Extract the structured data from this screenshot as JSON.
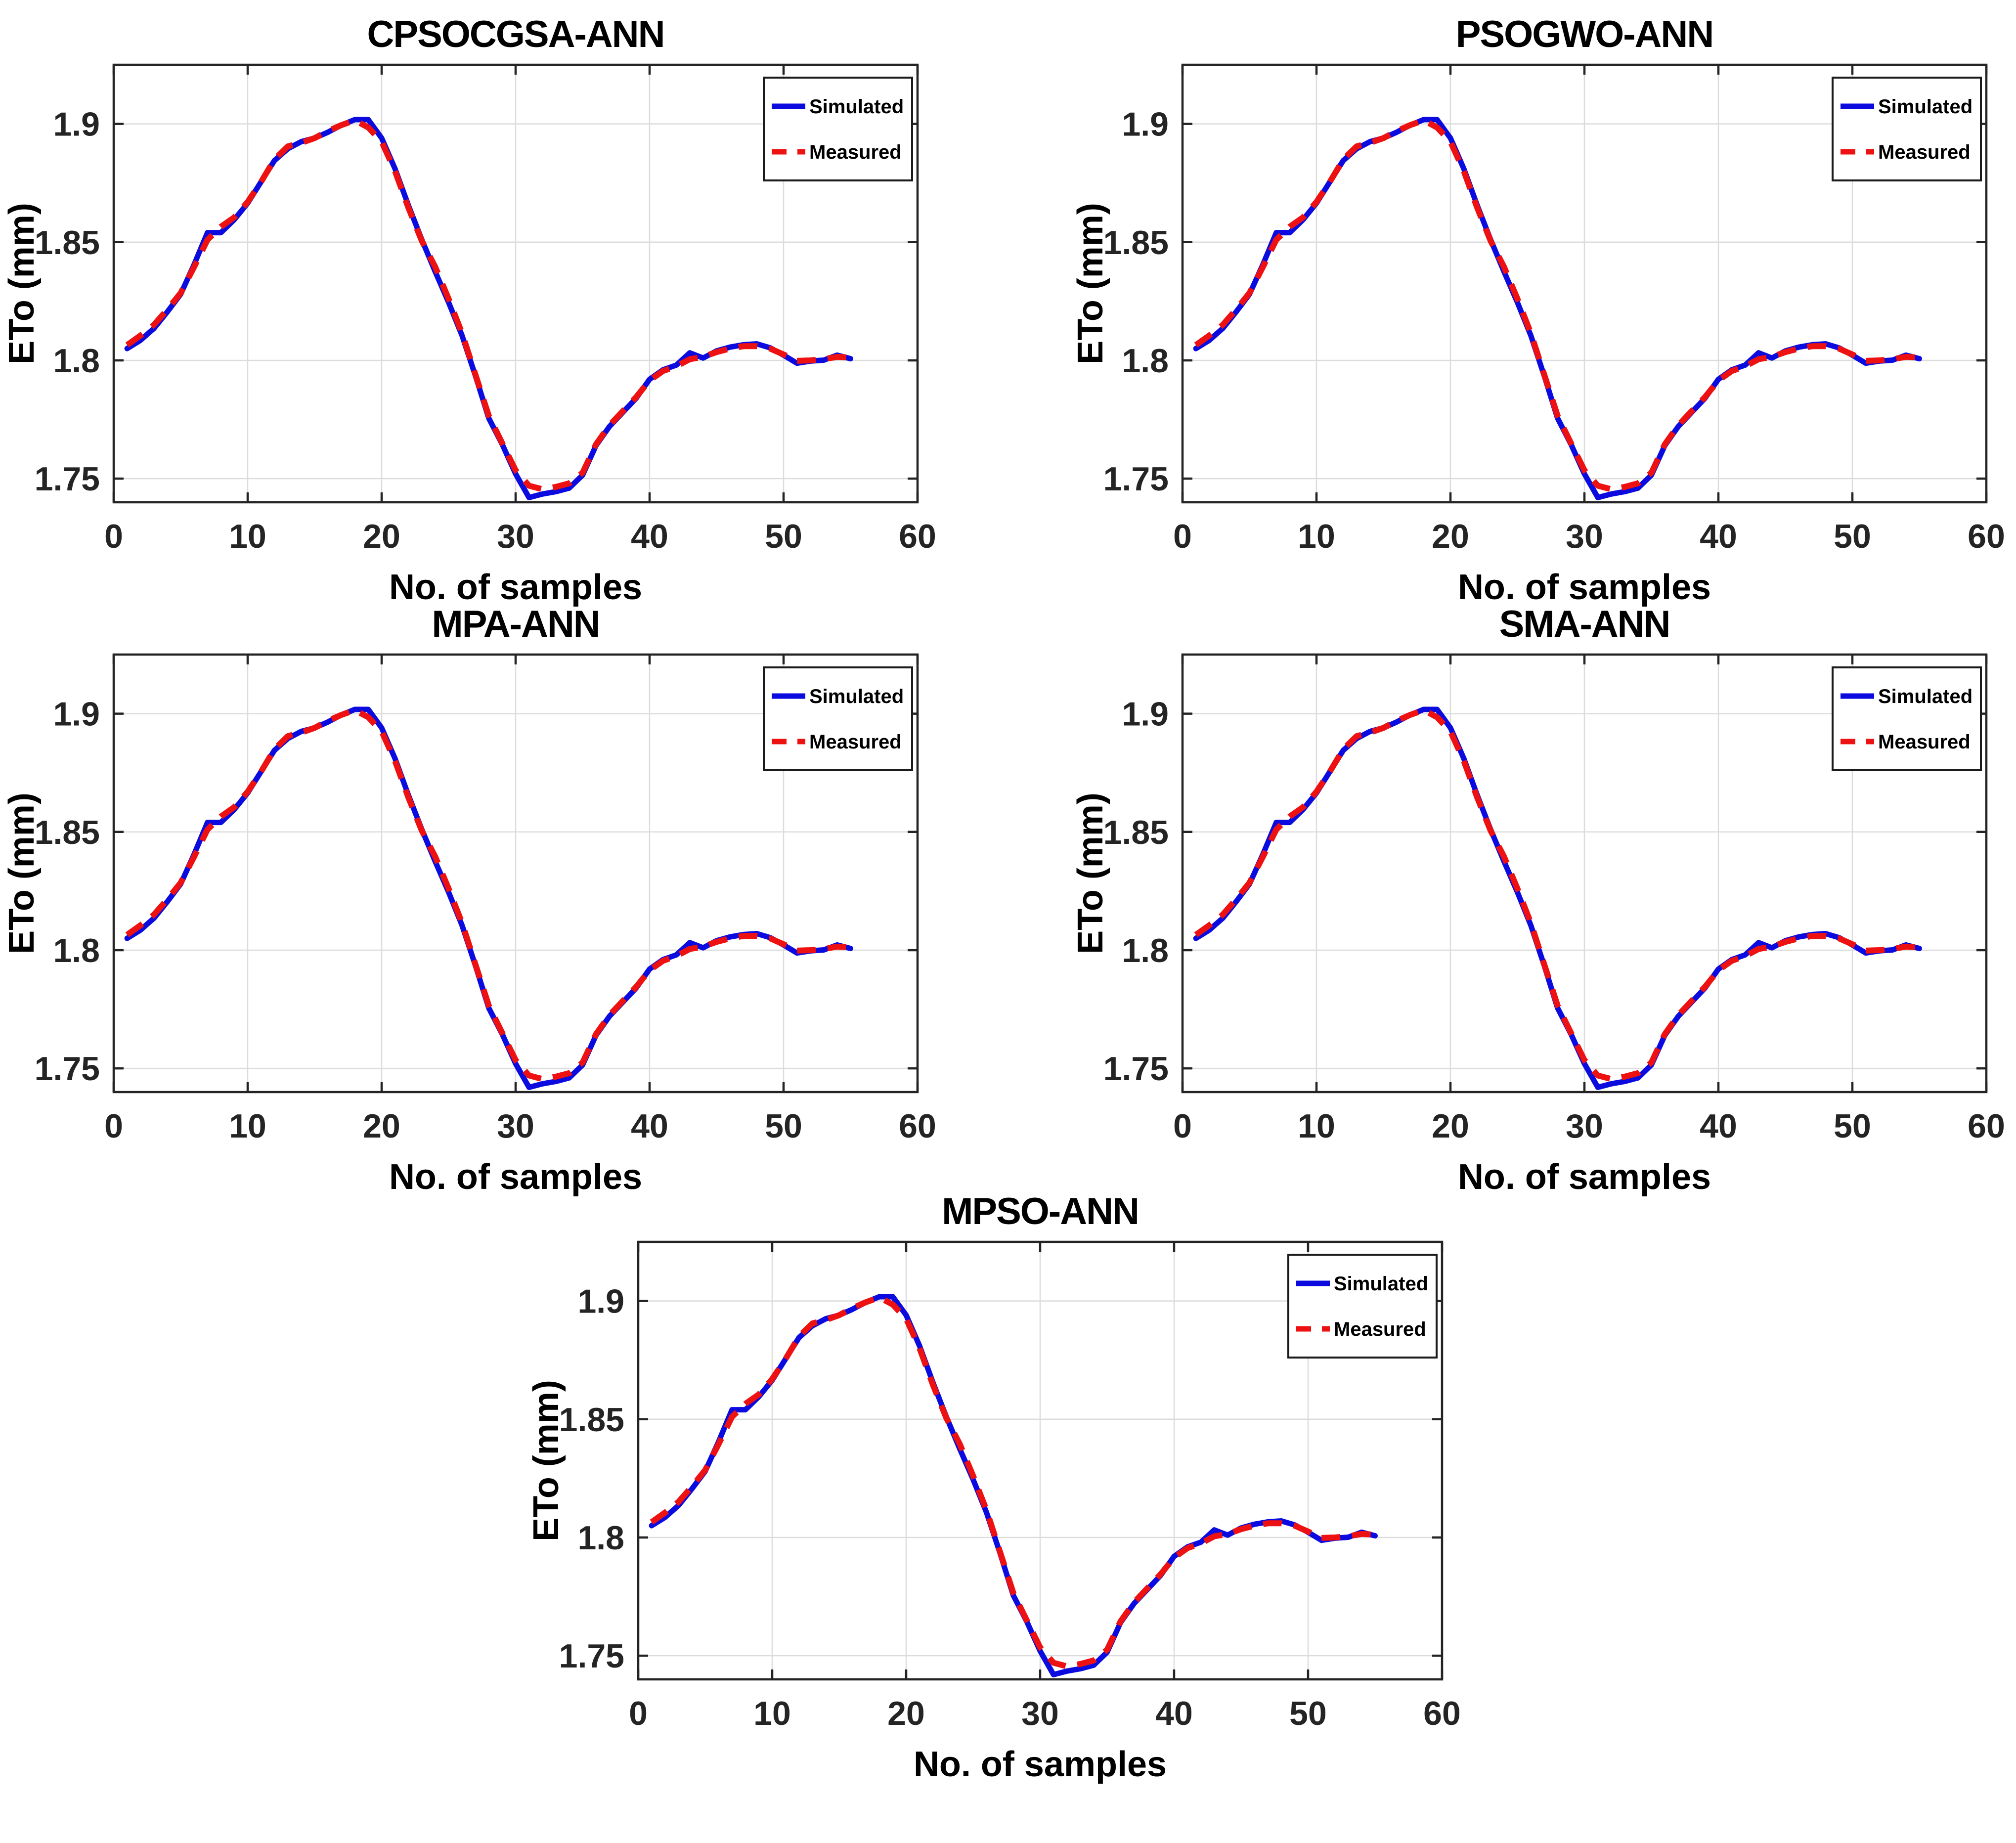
{
  "chart_data": {
    "type": "line",
    "xlabel": "No. of samples",
    "ylabel": "ETo (mm)",
    "xlim": [
      0,
      60
    ],
    "ylim": [
      1.74,
      1.925
    ],
    "xticks": [
      0,
      10,
      20,
      30,
      40,
      50,
      60
    ],
    "xtick_labels": [
      "0",
      "10",
      "20",
      "30",
      "40",
      "50",
      "60"
    ],
    "yticks": [
      1.75,
      1.8,
      1.85,
      1.9
    ],
    "ytick_labels": [
      "1.75",
      "1.8",
      "1.85",
      "1.9"
    ],
    "grid": true,
    "legend": {
      "position": "top-right",
      "entries": [
        {
          "label": "Simulated",
          "color": "#0b0bdf",
          "style": "solid"
        },
        {
          "label": "Measured",
          "color": "#ee1111",
          "style": "dashed"
        }
      ]
    },
    "x": [
      1,
      2,
      3,
      4,
      5,
      6,
      7,
      8,
      9,
      10,
      11,
      12,
      13,
      14,
      15,
      16,
      17,
      18,
      19,
      20,
      21,
      22,
      23,
      24,
      25,
      26,
      27,
      28,
      29,
      30,
      31,
      32,
      33,
      34,
      35,
      36,
      37,
      38,
      39,
      40,
      41,
      42,
      43,
      44,
      45,
      46,
      47,
      48,
      49,
      50,
      51,
      52,
      53,
      54,
      55
    ],
    "series": [
      {
        "name": "Simulated",
        "color": "#0b0bdf",
        "style": "solid",
        "values": [
          1.805,
          1.8085,
          1.8135,
          1.8205,
          1.828,
          1.8405,
          1.854,
          1.854,
          1.8595,
          1.8665,
          1.8755,
          1.8845,
          1.8895,
          1.8925,
          1.894,
          1.8965,
          1.8995,
          1.9018,
          1.9018,
          1.894,
          1.881,
          1.8655,
          1.851,
          1.8375,
          1.8245,
          1.8105,
          1.7935,
          1.7755,
          1.7645,
          1.752,
          1.742,
          1.7435,
          1.7445,
          1.746,
          1.7515,
          1.764,
          1.772,
          1.778,
          1.784,
          1.792,
          1.796,
          1.798,
          1.8032,
          1.801,
          1.804,
          1.8056,
          1.8066,
          1.807,
          1.8053,
          1.8022,
          1.7988,
          1.7997,
          1.8001,
          1.8022,
          1.8007
        ]
      },
      {
        "name": "Measured",
        "color": "#ee1111",
        "style": "dashed",
        "values": [
          1.8065,
          1.8105,
          1.815,
          1.8215,
          1.8285,
          1.8395,
          1.851,
          1.8565,
          1.8605,
          1.867,
          1.8755,
          1.885,
          1.8905,
          1.892,
          1.894,
          1.897,
          1.8995,
          1.9015,
          1.8985,
          1.8925,
          1.88,
          1.8645,
          1.8505,
          1.8395,
          1.826,
          1.8115,
          1.794,
          1.7765,
          1.765,
          1.7535,
          1.747,
          1.7455,
          1.7465,
          1.748,
          1.7525,
          1.7645,
          1.7725,
          1.7785,
          1.7845,
          1.7915,
          1.7955,
          1.7975,
          1.8005,
          1.8015,
          1.8035,
          1.805,
          1.806,
          1.806,
          1.805,
          1.8025,
          1.7998,
          1.8,
          1.8005,
          1.8015,
          1.8012
        ]
      }
    ],
    "charts": [
      {
        "title": "CPSOCGSA-ANN"
      },
      {
        "title": "PSOGWO-ANN"
      },
      {
        "title": "MPA-ANN"
      },
      {
        "title": "SMA-ANN"
      },
      {
        "title": "MPSO-ANN"
      }
    ]
  },
  "colors": {
    "background": "#ffffff",
    "axis": "#242424",
    "grid": "#dcdcdc",
    "title_text": "#000000",
    "tick_text": "#242424",
    "simulated": "#0b0bdf",
    "measured": "#ee1111"
  }
}
